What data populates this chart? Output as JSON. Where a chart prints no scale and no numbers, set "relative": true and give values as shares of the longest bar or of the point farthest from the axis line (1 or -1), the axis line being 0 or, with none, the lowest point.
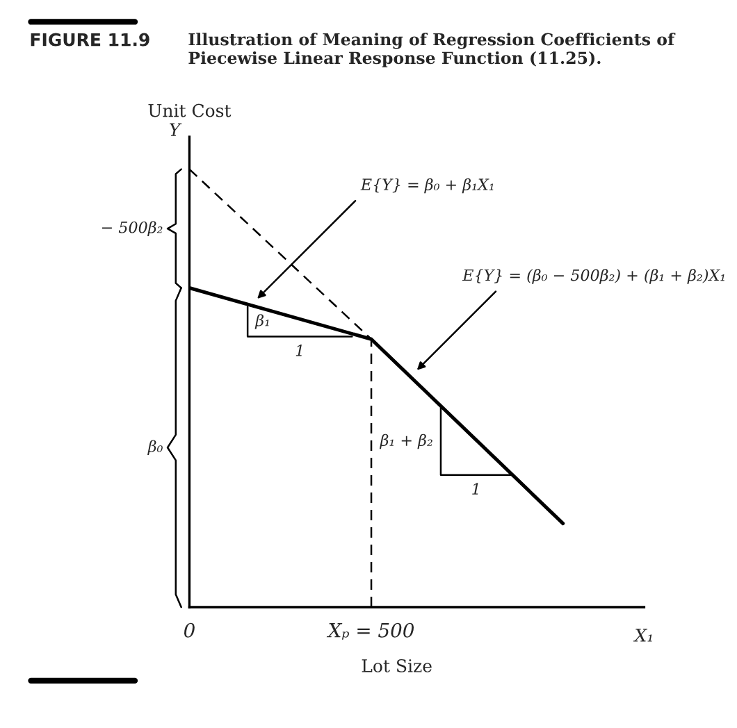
{
  "chart_data": {
    "type": "line",
    "relative": true,
    "title": "Illustration of Meaning of Regression Coefficients of Piecewise Linear Response Function (11.25).",
    "xlabel": "Lot Size",
    "ylabel": "Unit Cost",
    "xlim": [
      0,
      1250
    ],
    "xticks": [
      0,
      {
        "value": 500,
        "label": "Xₚ = 500"
      }
    ],
    "tick_labels": "x",
    "grid": false,
    "marker": "none",
    "series": [
      {
        "color": "#000000",
        "line_style": "solid",
        "x": [
          0,
          500,
          1027
        ],
        "values": [
          0.729,
          0.612,
          0.191
        ]
      },
      {
        "color": "#000000",
        "line_style": "dashed",
        "x": [
          0,
          500
        ],
        "values": [
          1,
          0.612
        ]
      },
      {
        "color": "#000000",
        "line_style": "solid",
        "x": [
          160,
          160,
          447
        ],
        "values": [
          0.686,
          0.618,
          0.618
        ]
      },
      {
        "color": "#000000",
        "line_style": "solid",
        "x": [
          691,
          691,
          885
        ],
        "values": [
          0.455,
          0.302,
          0.302
        ]
      }
    ],
    "ref_lines": [
      {
        "axis": "x",
        "value": 500,
        "color": "#000000",
        "line_style": "dashed"
      }
    ],
    "annotations": [
      "FIGURE 11.9",
      "Y",
      "X₁",
      "− 500β₂",
      "β₀",
      {
        "text": "E{Y} = β₀ + β₁X₁",
        "x": 179,
        "y": 0.698
      },
      {
        "text": "E{Y} = (β₀ − 500β₂) + (β₁ + β₂)X₁",
        "x": 618,
        "y": 0.535
      },
      "β₁",
      "1",
      "β₁ + β₂",
      "1"
    ]
  }
}
